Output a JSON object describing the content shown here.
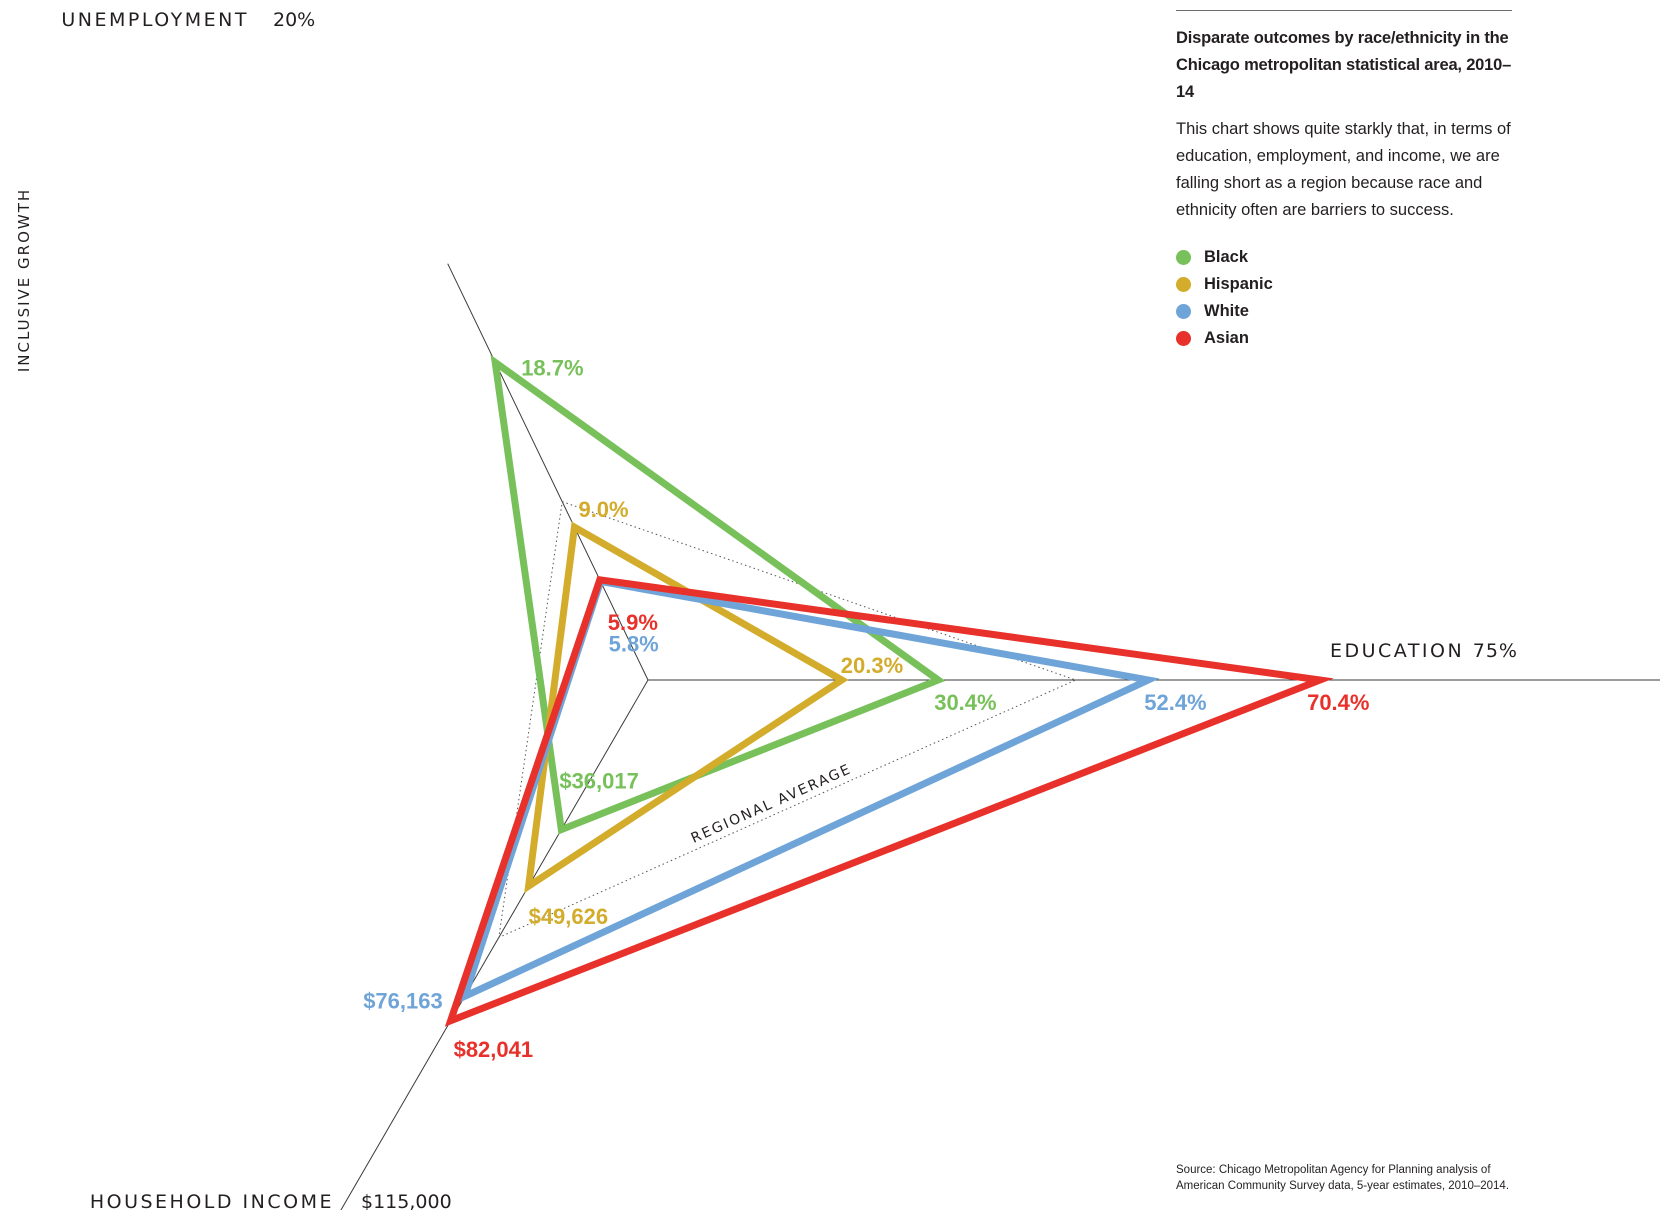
{
  "side_label": "INCLUSIVE GROWTH",
  "panel": {
    "title": "Disparate outcomes by race/ethnicity in the Chicago metropolitan statistical area, 2010–14",
    "description": "This chart shows quite starkly that, in terms of education, employment, and income, we are falling short as a region because race and ethnicity often are barriers to success."
  },
  "source": "Source: Chicago Metropolitan Agency for Planning analysis of American Community Survey data, 5-year estimates, 2010–2014.",
  "chart_data": {
    "type": "radar",
    "axes": [
      {
        "key": "unemployment",
        "title": "UNEMPLOYMENT",
        "max": 20,
        "max_label": "20%"
      },
      {
        "key": "education",
        "title": "EDUCATION",
        "max": 75,
        "max_label": "75%"
      },
      {
        "key": "income",
        "title": "HOUSEHOLD INCOME",
        "max": 115000,
        "max_label": "$115,000"
      }
    ],
    "series": [
      {
        "name": "Black",
        "color": "#77c05a",
        "values": {
          "unemployment": 18.7,
          "education": 30.4,
          "income": 36017
        },
        "labels": {
          "unemployment": "18.7%",
          "education": "30.4%",
          "income": "$36,017"
        }
      },
      {
        "name": "Hispanic",
        "color": "#d3ac2b",
        "values": {
          "unemployment": 9.0,
          "education": 20.3,
          "income": 49626
        },
        "labels": {
          "unemployment": "9.0%",
          "education": "20.3%",
          "income": "$49,626"
        }
      },
      {
        "name": "White",
        "color": "#6fa4d8",
        "values": {
          "unemployment": 5.8,
          "education": 52.4,
          "income": 76163
        },
        "labels": {
          "unemployment": "5.8%",
          "education": "52.4%",
          "income": "$76,163"
        }
      },
      {
        "name": "Asian",
        "color": "#e8312a",
        "values": {
          "unemployment": 5.9,
          "education": 70.4,
          "income": 82041
        },
        "labels": {
          "unemployment": "5.9%",
          "education": "70.4%",
          "income": "$82,041"
        }
      }
    ],
    "regional_average": {
      "label": "REGIONAL AVERAGE",
      "values": {
        "unemployment": 10.5,
        "education": 44.8,
        "income": 62000
      }
    }
  }
}
